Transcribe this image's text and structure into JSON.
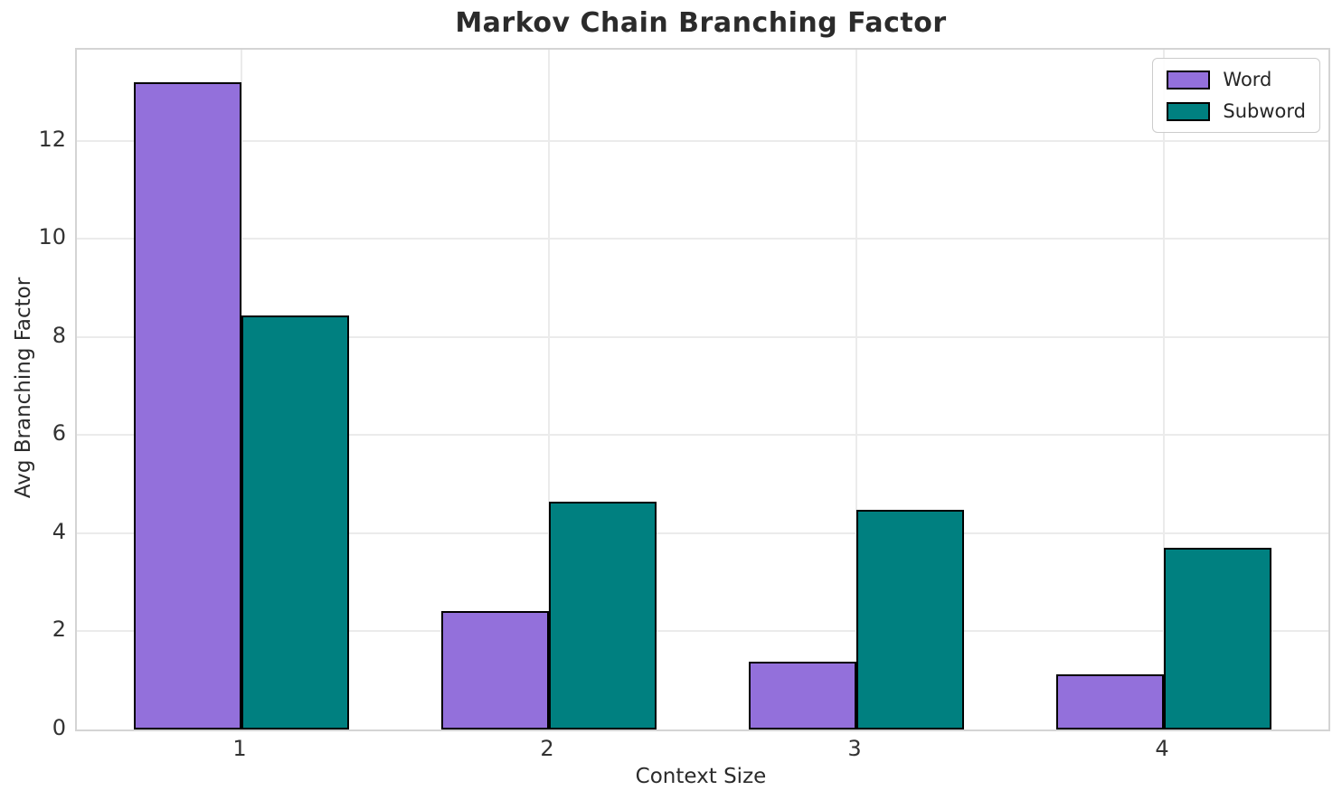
{
  "chart_data": {
    "type": "bar",
    "title": "Markov Chain Branching Factor",
    "xlabel": "Context Size",
    "ylabel": "Avg Branching Factor",
    "categories": [
      "1",
      "2",
      "3",
      "4"
    ],
    "series": [
      {
        "name": "Word",
        "color": "#9370DB",
        "values": [
          13.2,
          2.42,
          1.38,
          1.12
        ]
      },
      {
        "name": "Subword",
        "color": "#008080",
        "values": [
          8.45,
          4.65,
          4.47,
          3.7
        ]
      }
    ],
    "yticks": [
      0,
      2,
      4,
      6,
      8,
      10,
      12
    ],
    "ylim": [
      0,
      13.86
    ],
    "bar_edge_color": "#000000",
    "grid": true,
    "legend_position": "upper right"
  },
  "colors": {
    "background": "#ffffff",
    "gridline": "#ebebeb",
    "spine": "#d4d4d4",
    "title_text": "#2b2b2b",
    "tick_text": "#333333"
  }
}
